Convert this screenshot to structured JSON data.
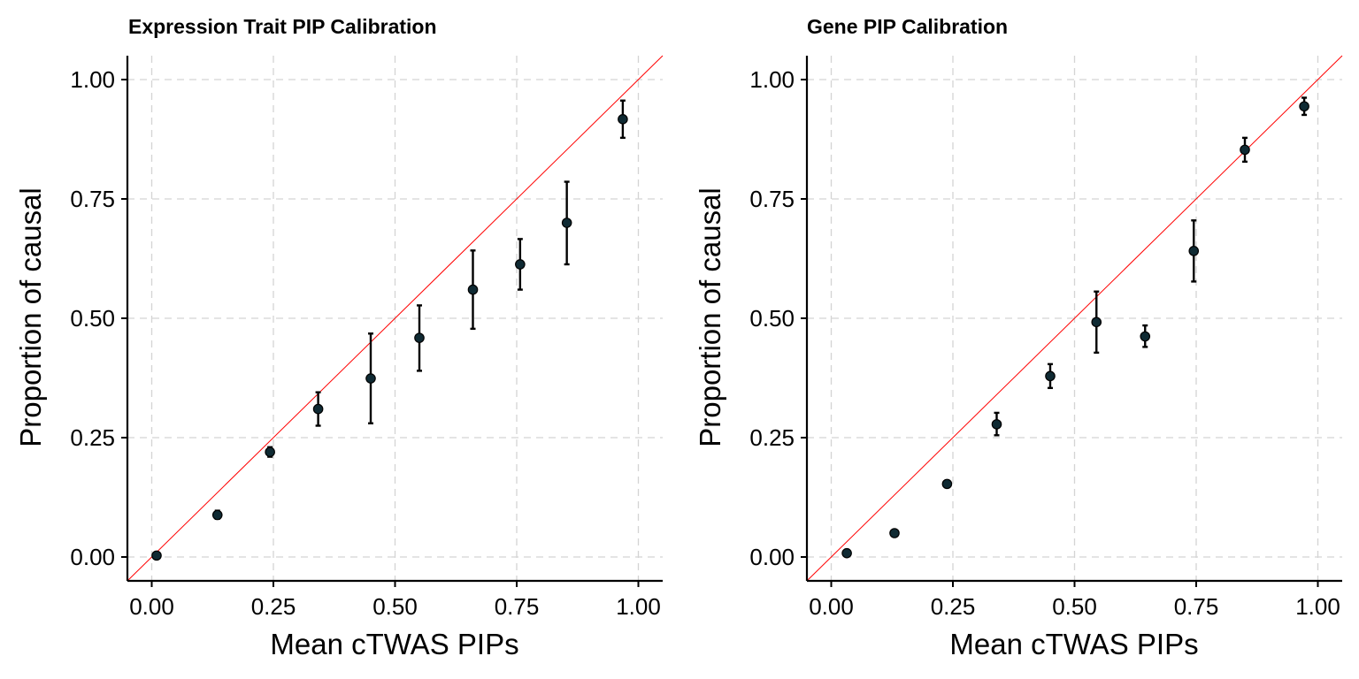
{
  "chart_data": [
    {
      "type": "scatter",
      "title": "Expression Trait PIP Calibration",
      "xlabel": "Mean cTWAS PIPs",
      "ylabel": "Proportion of causal",
      "xlim": [
        -0.05,
        1.05
      ],
      "ylim": [
        -0.05,
        1.05
      ],
      "x_ticks": [
        "0.00",
        "0.25",
        "0.50",
        "0.75",
        "1.00"
      ],
      "y_ticks": [
        "0.00",
        "0.25",
        "0.50",
        "0.75",
        "1.00"
      ],
      "reference_line": "y = x",
      "colors": {
        "reference_line": "#ff0000",
        "points": "#0f2a33",
        "error_bars": "#000000"
      },
      "points": [
        {
          "x": 0.01,
          "y": 0.003,
          "lower": 0.0,
          "upper": 0.006
        },
        {
          "x": 0.135,
          "y": 0.088,
          "lower": 0.08,
          "upper": 0.097
        },
        {
          "x": 0.243,
          "y": 0.22,
          "lower": 0.21,
          "upper": 0.23
        },
        {
          "x": 0.342,
          "y": 0.31,
          "lower": 0.275,
          "upper": 0.345
        },
        {
          "x": 0.45,
          "y": 0.374,
          "lower": 0.28,
          "upper": 0.468
        },
        {
          "x": 0.55,
          "y": 0.459,
          "lower": 0.39,
          "upper": 0.527
        },
        {
          "x": 0.66,
          "y": 0.56,
          "lower": 0.478,
          "upper": 0.642
        },
        {
          "x": 0.757,
          "y": 0.613,
          "lower": 0.56,
          "upper": 0.666
        },
        {
          "x": 0.853,
          "y": 0.7,
          "lower": 0.613,
          "upper": 0.786
        },
        {
          "x": 0.968,
          "y": 0.917,
          "lower": 0.878,
          "upper": 0.956
        }
      ]
    },
    {
      "type": "scatter",
      "title": "Gene PIP Calibration",
      "xlabel": "Mean cTWAS PIPs",
      "ylabel": "Proportion of causal",
      "xlim": [
        -0.05,
        1.05
      ],
      "ylim": [
        -0.05,
        1.05
      ],
      "x_ticks": [
        "0.00",
        "0.25",
        "0.50",
        "0.75",
        "1.00"
      ],
      "y_ticks": [
        "0.00",
        "0.25",
        "0.50",
        "0.75",
        "1.00"
      ],
      "reference_line": "y = x",
      "colors": {
        "reference_line": "#ff0000",
        "points": "#0f2a33",
        "error_bars": "#000000"
      },
      "points": [
        {
          "x": 0.032,
          "y": 0.008,
          "lower": 0.005,
          "upper": 0.011
        },
        {
          "x": 0.13,
          "y": 0.05,
          "lower": 0.046,
          "upper": 0.055
        },
        {
          "x": 0.238,
          "y": 0.153,
          "lower": 0.146,
          "upper": 0.16
        },
        {
          "x": 0.34,
          "y": 0.278,
          "lower": 0.255,
          "upper": 0.302
        },
        {
          "x": 0.45,
          "y": 0.379,
          "lower": 0.354,
          "upper": 0.404
        },
        {
          "x": 0.545,
          "y": 0.492,
          "lower": 0.428,
          "upper": 0.556
        },
        {
          "x": 0.645,
          "y": 0.462,
          "lower": 0.44,
          "upper": 0.485
        },
        {
          "x": 0.745,
          "y": 0.641,
          "lower": 0.577,
          "upper": 0.705
        },
        {
          "x": 0.85,
          "y": 0.853,
          "lower": 0.828,
          "upper": 0.878
        },
        {
          "x": 0.972,
          "y": 0.944,
          "lower": 0.926,
          "upper": 0.962
        }
      ]
    }
  ]
}
